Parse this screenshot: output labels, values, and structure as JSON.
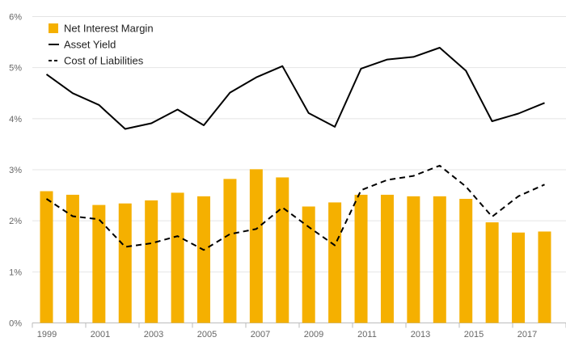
{
  "chart_data": {
    "type": "bar",
    "x": [
      1999,
      2000,
      2001,
      2002,
      2003,
      2004,
      2005,
      2006,
      2007,
      2008,
      2009,
      2010,
      2011,
      2012,
      2013,
      2014,
      2015,
      2016,
      2017,
      2018
    ],
    "x_tick_labels": [
      "1999",
      "2001",
      "2003",
      "2005",
      "2007",
      "2009",
      "2011",
      "2013",
      "2015",
      "2017"
    ],
    "y_tick_labels": [
      "0%",
      "1%",
      "2%",
      "3%",
      "4%",
      "5%",
      "6%"
    ],
    "ylim": [
      0,
      6
    ],
    "grid": true,
    "legend_position": "top-left",
    "series": [
      {
        "name": "Net Interest Margin",
        "type": "bar",
        "color": "#f5b000",
        "values": [
          2.58,
          2.51,
          2.31,
          2.34,
          2.4,
          2.55,
          2.48,
          2.82,
          3.01,
          2.85,
          2.28,
          2.36,
          2.51,
          2.51,
          2.48,
          2.48,
          2.43,
          1.97,
          1.77,
          1.79
        ]
      },
      {
        "name": "Asset Yield",
        "type": "line",
        "color": "#000000",
        "style": "solid",
        "values": [
          4.87,
          4.5,
          4.27,
          3.8,
          3.91,
          4.18,
          3.87,
          4.51,
          4.81,
          5.03,
          4.11,
          3.84,
          4.98,
          5.16,
          5.21,
          5.39,
          4.94,
          3.95,
          4.1,
          4.31
        ]
      },
      {
        "name": "Cost of Liabilities",
        "type": "line",
        "color": "#000000",
        "style": "dashed",
        "values": [
          2.43,
          2.09,
          2.03,
          1.49,
          1.56,
          1.7,
          1.43,
          1.74,
          1.84,
          2.26,
          1.88,
          1.52,
          2.6,
          2.8,
          2.88,
          3.08,
          2.67,
          2.08,
          2.48,
          2.71
        ]
      }
    ]
  }
}
